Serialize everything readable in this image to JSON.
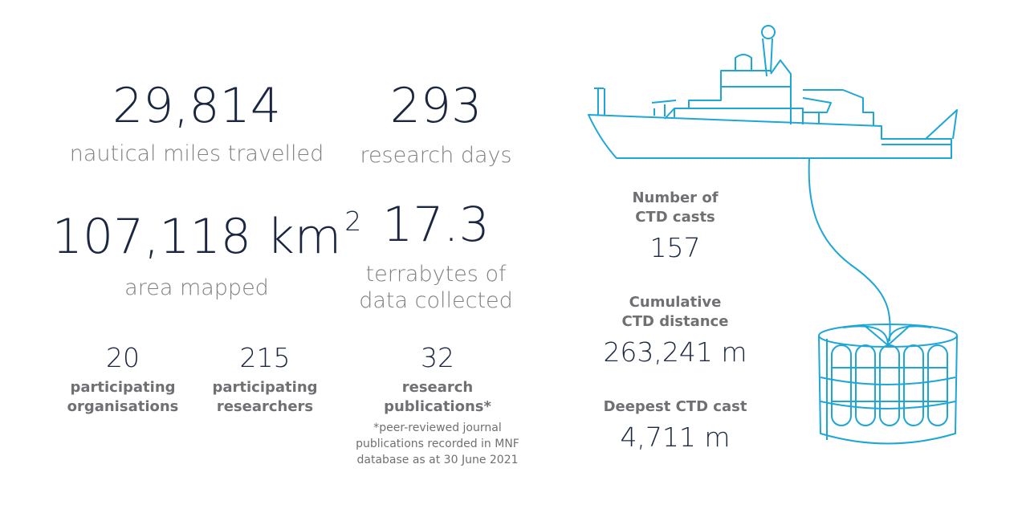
{
  "stats": [
    {
      "value": "29,814",
      "label_lines": [
        "nautical miles travelled"
      ]
    },
    {
      "value": "293",
      "label_lines": [
        "research days"
      ]
    },
    {
      "value": "107,118 km",
      "sup": "2",
      "label_lines": [
        "area mapped"
      ]
    },
    {
      "value": "17.3",
      "label_lines": [
        "terrabytes of",
        "data collected"
      ]
    }
  ],
  "small_stats": [
    {
      "value": "20",
      "label_lines": [
        "participating",
        "organisations"
      ]
    },
    {
      "value": "215",
      "label_lines": [
        "participating",
        "researchers"
      ]
    },
    {
      "value": "32",
      "label_lines": [
        "research",
        "publications*"
      ]
    }
  ],
  "footnote": [
    "*peer-reviewed journal",
    "publications recorded in MNF",
    "database as at 30 June 2021"
  ],
  "ctd": [
    {
      "label_lines": [
        "Number of",
        "CTD casts"
      ],
      "value": "157"
    },
    {
      "label_lines": [
        "Cumulative",
        "CTD distance"
      ],
      "value": "263,241 m"
    },
    {
      "label_lines": [
        "Deepest CTD cast"
      ],
      "value": "4,711 m"
    }
  ]
}
